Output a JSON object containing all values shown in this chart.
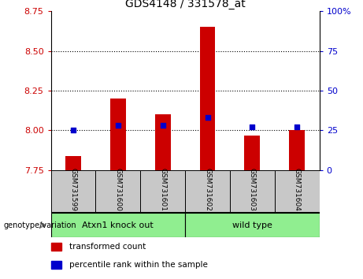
{
  "title": "GDS4148 / 331578_at",
  "samples": [
    "GSM731599",
    "GSM731600",
    "GSM731601",
    "GSM731602",
    "GSM731603",
    "GSM731604"
  ],
  "transformed_counts": [
    7.84,
    8.2,
    8.1,
    8.65,
    7.97,
    8.0
  ],
  "percentile_ranks": [
    25,
    28,
    28,
    33,
    27,
    27
  ],
  "ylim_left": [
    7.75,
    8.75
  ],
  "ylim_right": [
    0,
    100
  ],
  "yticks_left": [
    7.75,
    8.0,
    8.25,
    8.5,
    8.75
  ],
  "yticks_right": [
    0,
    25,
    50,
    75,
    100
  ],
  "grid_lines": [
    8.0,
    8.25,
    8.5
  ],
  "bar_color": "#cc0000",
  "dot_color": "#0000cc",
  "bar_width": 0.35,
  "groups": [
    {
      "label": "Atxn1 knock out",
      "samples": [
        0,
        1,
        2
      ],
      "color": "#90ee90"
    },
    {
      "label": "wild type",
      "samples": [
        3,
        4,
        5
      ],
      "color": "#90ee90"
    }
  ],
  "genotype_label": "genotype/variation",
  "legend_items": [
    {
      "label": "transformed count",
      "color": "#cc0000"
    },
    {
      "label": "percentile rank within the sample",
      "color": "#0000cc"
    }
  ],
  "tick_color_left": "#cc0000",
  "tick_color_right": "#0000cc",
  "group_box_color": "#c8c8c8",
  "background_color": "#ffffff"
}
